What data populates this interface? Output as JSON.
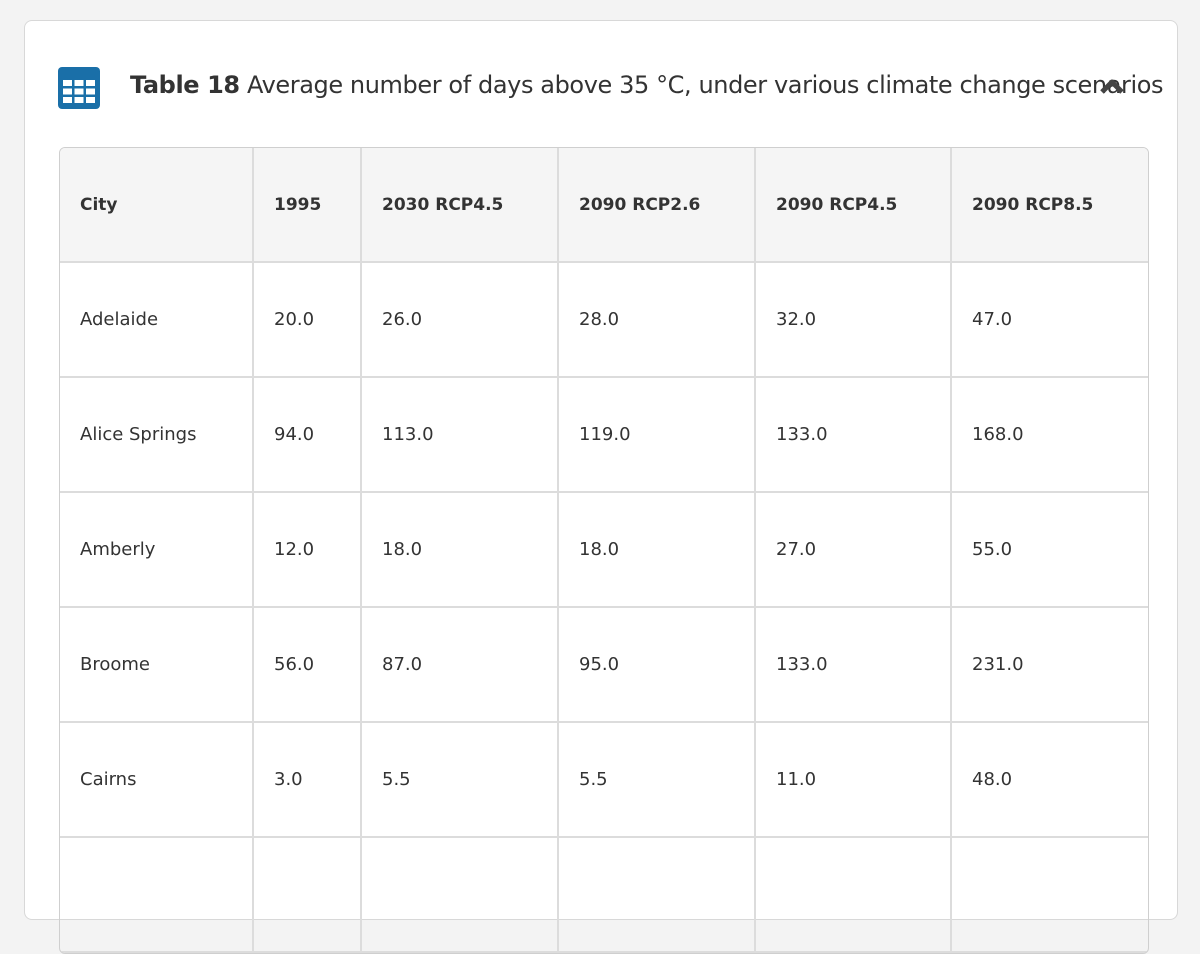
{
  "header": {
    "label": "Table 18",
    "title": "Average number of days above 35 °C, under various climate change scenarios"
  },
  "table": {
    "columns": [
      "City",
      "1995",
      "2030 RCP4.5",
      "2090 RCP2.6",
      "2090 RCP4.5",
      "2090 RCP8.5"
    ],
    "rows": [
      [
        "Adelaide",
        "20.0",
        "26.0",
        "28.0",
        "32.0",
        "47.0"
      ],
      [
        "Alice Springs",
        "94.0",
        "113.0",
        "119.0",
        "133.0",
        "168.0"
      ],
      [
        "Amberly",
        "12.0",
        "18.0",
        "18.0",
        "27.0",
        "55.0"
      ],
      [
        "Broome",
        "56.0",
        "87.0",
        "95.0",
        "133.0",
        "231.0"
      ],
      [
        "Cairns",
        "3.0",
        "5.5",
        "5.5",
        "11.0",
        "48.0"
      ]
    ]
  }
}
